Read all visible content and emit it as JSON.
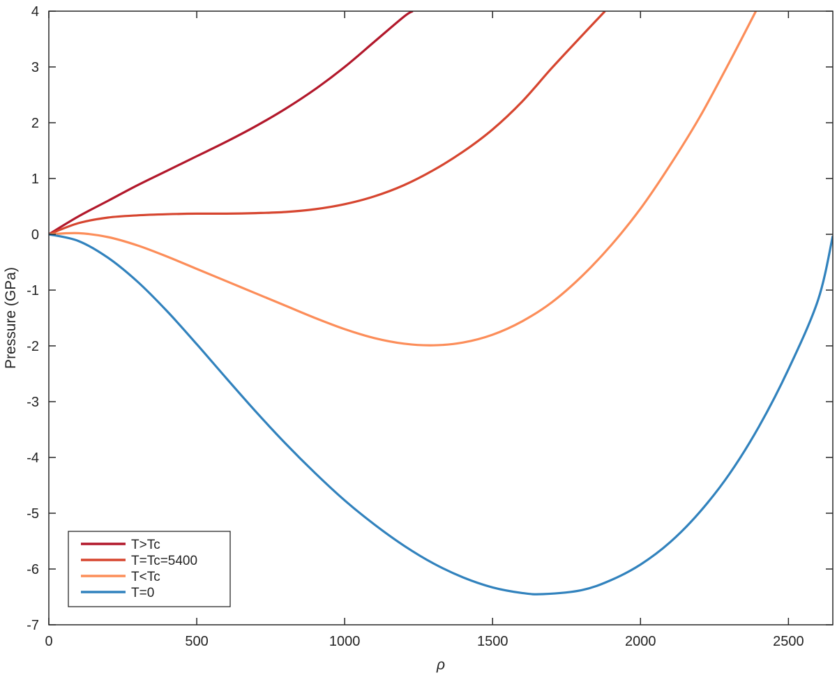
{
  "chart_data": {
    "type": "line",
    "title": "",
    "xlabel": "ρ",
    "ylabel": "Pressure (GPa)",
    "xlim": [
      0,
      2650
    ],
    "ylim": [
      -7,
      4
    ],
    "x_ticks": [
      0,
      500,
      1000,
      1500,
      2000,
      2500
    ],
    "y_ticks": [
      -7,
      -6,
      -5,
      -4,
      -3,
      -2,
      -1,
      0,
      1,
      2,
      3,
      4
    ],
    "grid": false,
    "legend_position": "bottom-left",
    "series": [
      {
        "name": "T>Tc",
        "color": "#b2182b",
        "x": [
          0,
          100,
          200,
          300,
          400,
          500,
          600,
          700,
          800,
          900,
          1000,
          1100,
          1200,
          1230
        ],
        "y": [
          0,
          0.32,
          0.6,
          0.88,
          1.14,
          1.4,
          1.66,
          1.94,
          2.25,
          2.6,
          3.0,
          3.45,
          3.9,
          4.0
        ]
      },
      {
        "name": "T=Tc=5400",
        "color": "#d6452f",
        "x": [
          0,
          100,
          200,
          300,
          400,
          500,
          600,
          700,
          800,
          900,
          1000,
          1100,
          1200,
          1300,
          1400,
          1500,
          1600,
          1700,
          1800,
          1880
        ],
        "y": [
          0,
          0.2,
          0.3,
          0.34,
          0.36,
          0.37,
          0.37,
          0.38,
          0.4,
          0.45,
          0.54,
          0.68,
          0.88,
          1.15,
          1.48,
          1.88,
          2.38,
          2.98,
          3.55,
          4.0
        ]
      },
      {
        "name": "T<Tc",
        "color": "#fc8d59",
        "x": [
          0,
          100,
          200,
          300,
          400,
          500,
          600,
          700,
          800,
          900,
          1000,
          1100,
          1200,
          1300,
          1400,
          1500,
          1600,
          1700,
          1800,
          1900,
          2000,
          2100,
          2200,
          2300,
          2390
        ],
        "y": [
          0,
          0.02,
          -0.05,
          -0.2,
          -0.4,
          -0.62,
          -0.84,
          -1.06,
          -1.28,
          -1.5,
          -1.7,
          -1.86,
          -1.96,
          -1.99,
          -1.94,
          -1.8,
          -1.56,
          -1.22,
          -0.76,
          -0.2,
          0.46,
          1.24,
          2.1,
          3.08,
          4.0
        ]
      },
      {
        "name": "T=0",
        "color": "#3182bd",
        "x": [
          0,
          100,
          200,
          300,
          400,
          500,
          600,
          700,
          800,
          900,
          1000,
          1100,
          1200,
          1300,
          1400,
          1500,
          1600,
          1670,
          1800,
          1900,
          2000,
          2100,
          2200,
          2300,
          2400,
          2500,
          2600,
          2650
        ],
        "y": [
          0,
          -0.12,
          -0.42,
          -0.85,
          -1.38,
          -1.97,
          -2.58,
          -3.18,
          -3.75,
          -4.28,
          -4.77,
          -5.2,
          -5.58,
          -5.9,
          -6.15,
          -6.33,
          -6.43,
          -6.45,
          -6.38,
          -6.2,
          -5.92,
          -5.52,
          -4.98,
          -4.3,
          -3.45,
          -2.42,
          -1.18,
          -0.03
        ]
      }
    ]
  }
}
